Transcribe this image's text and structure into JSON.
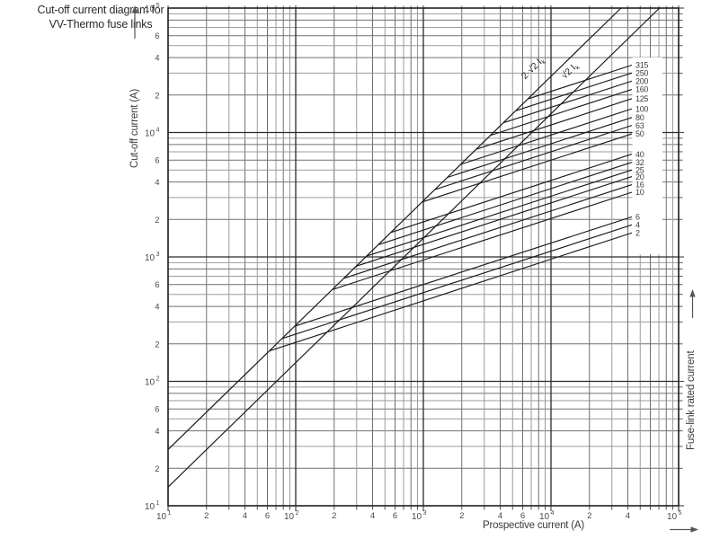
{
  "title": {
    "line1": "Cut-off current diagram for",
    "line2": "VV-Thermo fuse links"
  },
  "axes": {
    "y_label": "Cut-off current (A)",
    "x_label": "Prospective current (A)",
    "right_label": "Fuse-link rated current"
  },
  "x_axis": {
    "major_ticks": [
      {
        "value": 10,
        "base": "10",
        "exp": "1"
      },
      {
        "value": 100,
        "base": "10",
        "exp": "2"
      },
      {
        "value": 1000,
        "base": "10",
        "exp": "3"
      },
      {
        "value": 10000,
        "base": "10",
        "exp": "4"
      },
      {
        "value": 100000,
        "base": "10",
        "exp": "5"
      }
    ],
    "minor_labels": [
      {
        "value": 20,
        "text": "2"
      },
      {
        "value": 40,
        "text": "4"
      },
      {
        "value": 60,
        "text": "6"
      },
      {
        "value": 200,
        "text": "2"
      },
      {
        "value": 400,
        "text": "4"
      },
      {
        "value": 600,
        "text": "6"
      },
      {
        "value": 2000,
        "text": "2"
      },
      {
        "value": 4000,
        "text": "4"
      },
      {
        "value": 6000,
        "text": "6"
      },
      {
        "value": 20000,
        "text": "2"
      },
      {
        "value": 40000,
        "text": "4"
      }
    ]
  },
  "y_axis": {
    "major_ticks": [
      {
        "value": 100000,
        "base": "10",
        "exp": "5"
      },
      {
        "value": 10000,
        "base": "10",
        "exp": "4"
      },
      {
        "value": 1000,
        "base": "10",
        "exp": "3"
      },
      {
        "value": 100,
        "base": "10",
        "exp": "2"
      },
      {
        "value": 10,
        "base": "10",
        "exp": "1"
      }
    ],
    "minor_labels": [
      {
        "value": 60000,
        "text": "6"
      },
      {
        "value": 40000,
        "text": "4"
      },
      {
        "value": 20000,
        "text": "2"
      },
      {
        "value": 6000,
        "text": "6"
      },
      {
        "value": 4000,
        "text": "4"
      },
      {
        "value": 2000,
        "text": "2"
      },
      {
        "value": 600,
        "text": "6"
      },
      {
        "value": 400,
        "text": "4"
      },
      {
        "value": 200,
        "text": "2"
      },
      {
        "value": 60,
        "text": "6"
      },
      {
        "value": 40,
        "text": "4"
      },
      {
        "value": 20,
        "text": "2"
      }
    ]
  },
  "chart_data": {
    "type": "line",
    "title": "Cut-off current diagram for VV-Thermo fuse links",
    "xlabel": "Prospective current (A)",
    "ylabel": "Cut-off current (A)",
    "right_label": "Fuse-link rated current",
    "x_scale": "log",
    "y_scale": "log",
    "xlim": [
      10,
      100000
    ],
    "ylim": [
      10,
      100000
    ],
    "grid": "log-log, major decades plus minors 2-9 in every decade",
    "reference_lines": [
      {
        "name": "asymmetrical-peak-line",
        "label_prefix": "2·√2 I",
        "label_sub": "k",
        "factor": 2.828
      },
      {
        "name": "symmetrical-peak-line",
        "label_prefix": "√2 I",
        "label_sub": "k",
        "factor": 1.414
      }
    ],
    "fuse_curves_note": "each curve is straight in log-log (slope 1/3), branching off the 2·√2·Ik line and ending at prospective ≈ 43000 A where its rating label is printed",
    "fuse_curves": [
      {
        "rating_a": "315",
        "branch_prospective_a": 6580,
        "end_prospective_a": 43000,
        "end_cutoff_a": 34800
      },
      {
        "rating_a": "250",
        "branch_prospective_a": 5290,
        "end_prospective_a": 43000,
        "end_cutoff_a": 30100
      },
      {
        "rating_a": "200",
        "branch_prospective_a": 4230,
        "end_prospective_a": 43000,
        "end_cutoff_a": 25900
      },
      {
        "rating_a": "160",
        "branch_prospective_a": 3350,
        "end_prospective_a": 43000,
        "end_cutoff_a": 22200
      },
      {
        "rating_a": "125",
        "branch_prospective_a": 2590,
        "end_prospective_a": 43000,
        "end_cutoff_a": 18700
      },
      {
        "rating_a": "100",
        "branch_prospective_a": 1960,
        "end_prospective_a": 43000,
        "end_cutoff_a": 15500
      },
      {
        "rating_a": "80",
        "branch_prospective_a": 1540,
        "end_prospective_a": 43000,
        "end_cutoff_a": 13200
      },
      {
        "rating_a": "63",
        "branch_prospective_a": 1230,
        "end_prospective_a": 43000,
        "end_cutoff_a": 11400
      },
      {
        "rating_a": "50",
        "branch_prospective_a": 976,
        "end_prospective_a": 43000,
        "end_cutoff_a": 9750
      },
      {
        "rating_a": "40",
        "branch_prospective_a": 556,
        "end_prospective_a": 43000,
        "end_cutoff_a": 6700
      },
      {
        "rating_a": "32",
        "branch_prospective_a": 443,
        "end_prospective_a": 43000,
        "end_cutoff_a": 5760
      },
      {
        "rating_a": "25",
        "branch_prospective_a": 359,
        "end_prospective_a": 43000,
        "end_cutoff_a": 5000
      },
      {
        "rating_a": "20",
        "branch_prospective_a": 298,
        "end_prospective_a": 43000,
        "end_cutoff_a": 4420
      },
      {
        "rating_a": "16",
        "branch_prospective_a": 238,
        "end_prospective_a": 43000,
        "end_cutoff_a": 3810
      },
      {
        "rating_a": "10",
        "branch_prospective_a": 193,
        "end_prospective_a": 43000,
        "end_cutoff_a": 3310
      },
      {
        "rating_a": "6",
        "branch_prospective_a": 98,
        "end_prospective_a": 43000,
        "end_cutoff_a": 2100
      },
      {
        "rating_a": "4",
        "branch_prospective_a": 78,
        "end_prospective_a": 43000,
        "end_cutoff_a": 1810
      },
      {
        "rating_a": "2",
        "branch_prospective_a": 62,
        "end_prospective_a": 43000,
        "end_cutoff_a": 1560
      }
    ]
  }
}
